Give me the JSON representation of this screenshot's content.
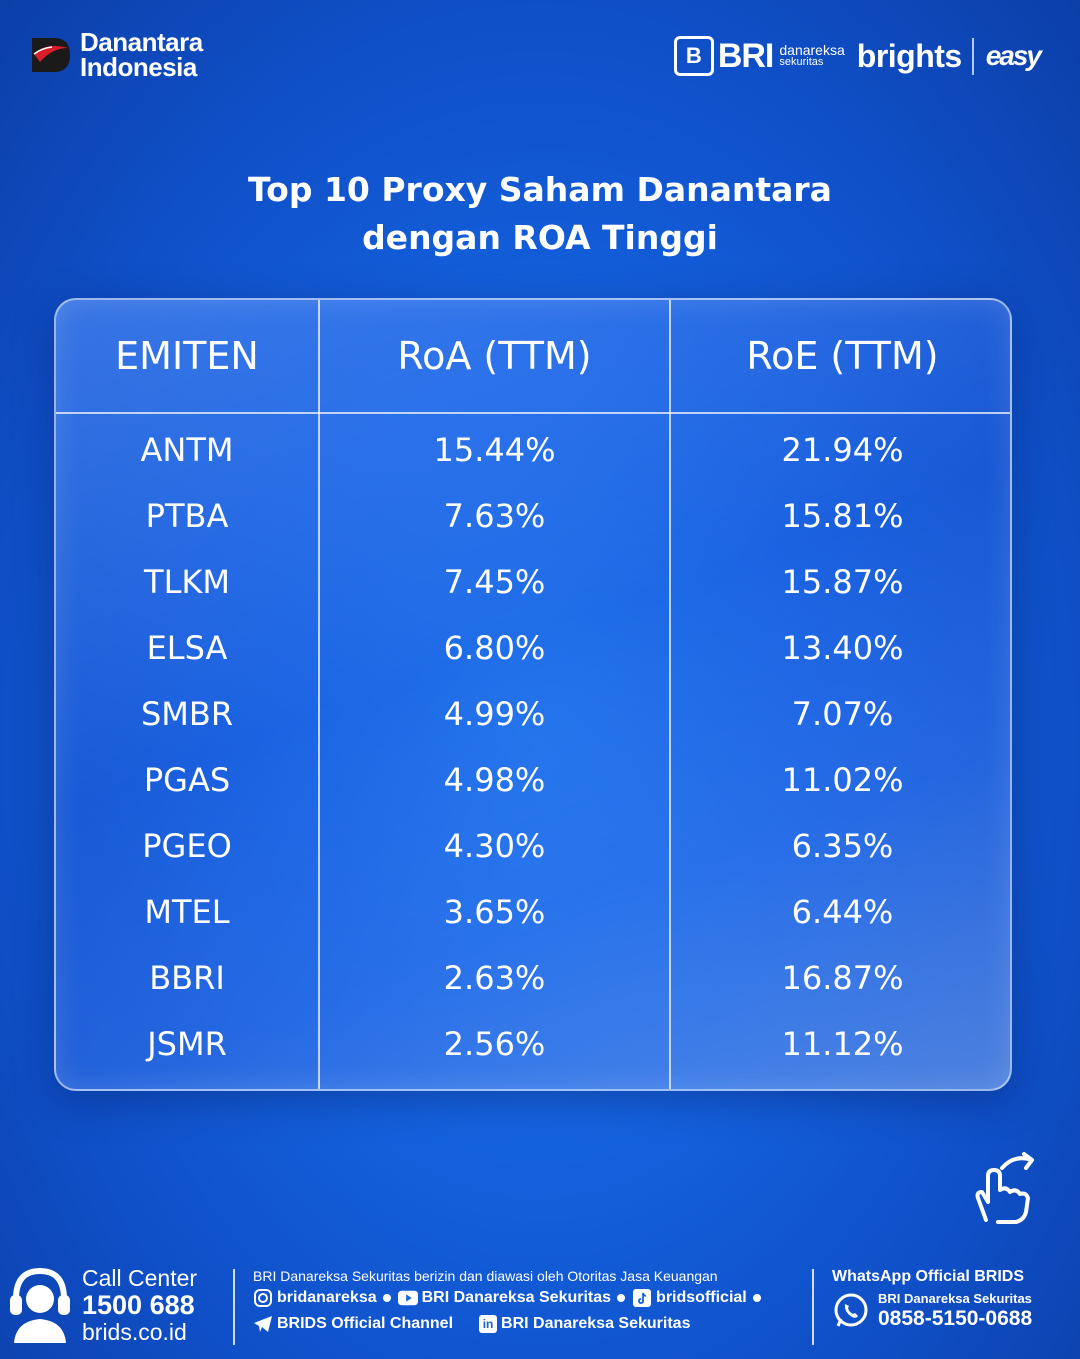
{
  "brand": {
    "left_logo_line1": "Danantara",
    "left_logo_line2": "Indonesia",
    "bri_mark": "B",
    "bri": "BRI",
    "bri_sub1": "danareksa",
    "bri_sub2": "sekuritas",
    "brights": "brights",
    "easy": "easy"
  },
  "title": {
    "line1": "Top 10 Proxy Saham Danantara",
    "line2": "dengan ROA Tinggi"
  },
  "table": {
    "headers": [
      "EMITEN",
      "RoA (TTM)",
      "RoE (TTM)"
    ],
    "rows": [
      {
        "emiten": "ANTM",
        "roa": "15.44%",
        "roe": "21.94%"
      },
      {
        "emiten": "PTBA",
        "roa": "7.63%",
        "roe": "15.81%"
      },
      {
        "emiten": "TLKM",
        "roa": "7.45%",
        "roe": "15.87%"
      },
      {
        "emiten": "ELSA",
        "roa": "6.80%",
        "roe": "13.40%"
      },
      {
        "emiten": "SMBR",
        "roa": "4.99%",
        "roe": "7.07%"
      },
      {
        "emiten": "PGAS",
        "roa": "4.98%",
        "roe": "11.02%"
      },
      {
        "emiten": "PGEO",
        "roa": "4.30%",
        "roe": "6.35%"
      },
      {
        "emiten": "MTEL",
        "roa": "3.65%",
        "roe": "6.44%"
      },
      {
        "emiten": "BBRI",
        "roa": "2.63%",
        "roe": "16.87%"
      },
      {
        "emiten": "JSMR",
        "roa": "2.56%",
        "roe": "11.12%"
      }
    ]
  },
  "footer": {
    "call_center_label": "Call Center",
    "call_center_number": "1500 688",
    "website": "brids.co.id",
    "ojk_note": "BRI Danareksa Sekuritas berizin dan diawasi oleh Otoritas Jasa Keuangan",
    "instagram": "bridanareksa",
    "youtube": "BRI Danareksa Sekuritas",
    "tiktok": "bridsofficial",
    "telegram": "BRIDS Official Channel",
    "linkedin_icon_text": "in",
    "linkedin": "BRI Danareksa Sekuritas",
    "whatsapp_title": "WhatsApp Official BRIDS",
    "whatsapp_name": "BRI Danareksa Sekuritas",
    "whatsapp_number": "0858-5150-0688"
  },
  "icons": [
    "danantara-logo-icon",
    "hand-swipe-icon",
    "headset-icon",
    "instagram-icon",
    "youtube-icon",
    "tiktok-icon",
    "telegram-icon",
    "linkedin-icon",
    "whatsapp-icon"
  ]
}
